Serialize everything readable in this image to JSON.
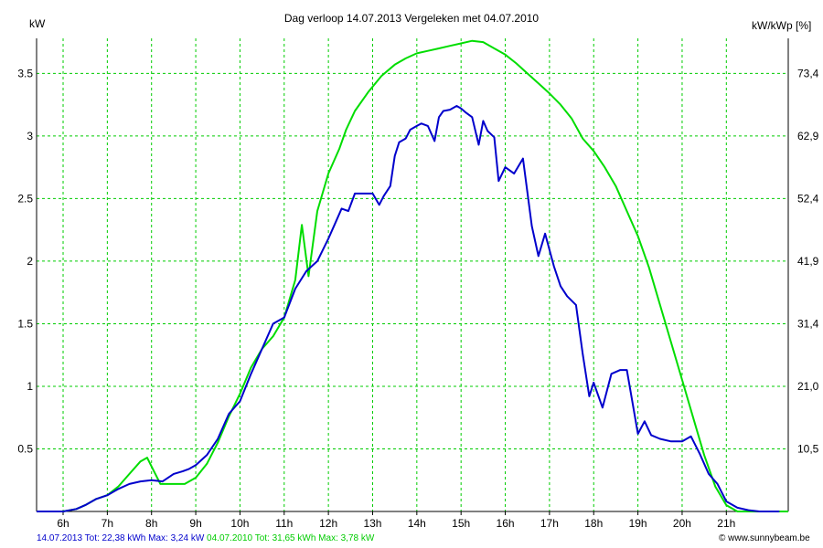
{
  "chart_data": {
    "type": "line",
    "title": "Dag  verloop 14.07.2013   Vergeleken met 04.07.2010",
    "ylabel_left": "kW",
    "ylabel_right": "kW/kWp [%]",
    "x_ticks": [
      "6h",
      "7h",
      "8h",
      "9h",
      "10h",
      "11h",
      "12h",
      "13h",
      "14h",
      "15h",
      "16h",
      "17h",
      "18h",
      "19h",
      "20h",
      "21h"
    ],
    "xlim": [
      5.4,
      22.4
    ],
    "ylim": [
      0,
      3.78
    ],
    "y_ticks_left": [
      "0.5",
      "1",
      "1.5",
      "2",
      "2.5",
      "3",
      "3.5"
    ],
    "y_ticks_right": [
      "10,5",
      "21,0",
      "31,4",
      "41,9",
      "52,4",
      "62,9",
      "73,4"
    ],
    "grid": true,
    "colors": {
      "series_2013": "#0000cc",
      "series_2010": "#00dd00",
      "grid": "#00cc00"
    },
    "series": [
      {
        "name": "14.07.2013",
        "color": "#0000cc",
        "x": [
          5.4,
          6.0,
          6.3,
          6.5,
          6.75,
          7.0,
          7.25,
          7.5,
          7.75,
          8.0,
          8.25,
          8.5,
          8.7,
          8.85,
          9.0,
          9.25,
          9.5,
          9.75,
          10.0,
          10.25,
          10.5,
          10.75,
          11.0,
          11.25,
          11.5,
          11.75,
          12.0,
          12.15,
          12.3,
          12.45,
          12.6,
          12.8,
          12.9,
          13.0,
          13.15,
          13.25,
          13.4,
          13.5,
          13.6,
          13.75,
          13.85,
          14.0,
          14.1,
          14.25,
          14.4,
          14.5,
          14.6,
          14.75,
          14.9,
          15.0,
          15.1,
          15.25,
          15.4,
          15.5,
          15.6,
          15.75,
          15.85,
          16.0,
          16.2,
          16.4,
          16.6,
          16.75,
          16.9,
          17.1,
          17.25,
          17.4,
          17.6,
          17.75,
          17.9,
          18.0,
          18.2,
          18.4,
          18.6,
          18.75,
          19.0,
          19.15,
          19.3,
          19.5,
          19.75,
          20.0,
          20.2,
          20.4,
          20.6,
          20.8,
          21.0,
          21.25,
          21.5,
          21.75,
          22.0,
          22.2
        ],
        "y": [
          0,
          0,
          0.02,
          0.05,
          0.1,
          0.13,
          0.18,
          0.22,
          0.24,
          0.25,
          0.24,
          0.3,
          0.32,
          0.34,
          0.37,
          0.45,
          0.58,
          0.78,
          0.88,
          1.1,
          1.3,
          1.5,
          1.55,
          1.78,
          1.92,
          2.0,
          2.18,
          2.3,
          2.42,
          2.4,
          2.54,
          2.54,
          2.54,
          2.54,
          2.45,
          2.52,
          2.6,
          2.84,
          2.95,
          2.98,
          3.05,
          3.08,
          3.1,
          3.08,
          2.96,
          3.15,
          3.2,
          3.21,
          3.24,
          3.22,
          3.19,
          3.15,
          2.93,
          3.12,
          3.04,
          2.99,
          2.64,
          2.75,
          2.7,
          2.82,
          2.28,
          2.04,
          2.22,
          1.96,
          1.8,
          1.72,
          1.65,
          1.26,
          0.92,
          1.03,
          0.83,
          1.1,
          1.13,
          1.13,
          0.62,
          0.72,
          0.61,
          0.58,
          0.56,
          0.56,
          0.6,
          0.46,
          0.3,
          0.22,
          0.08,
          0.03,
          0.01,
          0,
          0,
          0
        ]
      },
      {
        "name": "04.07.2010",
        "color": "#00dd00",
        "x": [
          5.4,
          6.0,
          6.3,
          6.5,
          6.75,
          7.0,
          7.25,
          7.5,
          7.75,
          7.9,
          8.0,
          8.2,
          8.35,
          8.5,
          8.75,
          9.0,
          9.25,
          9.5,
          9.75,
          10.0,
          10.25,
          10.5,
          10.75,
          11.0,
          11.25,
          11.4,
          11.55,
          11.75,
          12.0,
          12.25,
          12.4,
          12.6,
          12.9,
          13.2,
          13.5,
          13.75,
          14.0,
          14.25,
          14.5,
          14.75,
          15.0,
          15.25,
          15.5,
          15.75,
          16.0,
          16.25,
          16.5,
          16.75,
          17.0,
          17.25,
          17.5,
          17.75,
          18.0,
          18.25,
          18.5,
          18.75,
          19.0,
          19.25,
          19.5,
          19.75,
          20.0,
          20.25,
          20.5,
          20.75,
          21.0,
          21.25,
          21.5,
          21.75,
          22.0,
          22.2,
          22.4
        ],
        "y": [
          0,
          0,
          0.02,
          0.05,
          0.1,
          0.13,
          0.2,
          0.3,
          0.4,
          0.43,
          0.36,
          0.22,
          0.22,
          0.22,
          0.22,
          0.27,
          0.38,
          0.55,
          0.76,
          0.94,
          1.15,
          1.3,
          1.4,
          1.55,
          1.85,
          2.29,
          1.88,
          2.4,
          2.7,
          2.9,
          3.05,
          3.2,
          3.35,
          3.48,
          3.57,
          3.62,
          3.66,
          3.68,
          3.7,
          3.72,
          3.74,
          3.76,
          3.75,
          3.7,
          3.65,
          3.58,
          3.5,
          3.42,
          3.34,
          3.25,
          3.14,
          2.98,
          2.88,
          2.75,
          2.6,
          2.4,
          2.2,
          1.95,
          1.65,
          1.35,
          1.05,
          0.75,
          0.45,
          0.2,
          0.05,
          0,
          0,
          0,
          0,
          0,
          0
        ]
      }
    ]
  },
  "footer": {
    "series1_text": "14.07.2013 Tot: 22,38 kWh Max: 3,24 kW",
    "series2_text": "04.07.2010 Tot: 31,65 kWh Max: 3,78 kW",
    "credit": "© www.sunnybeam.be"
  }
}
